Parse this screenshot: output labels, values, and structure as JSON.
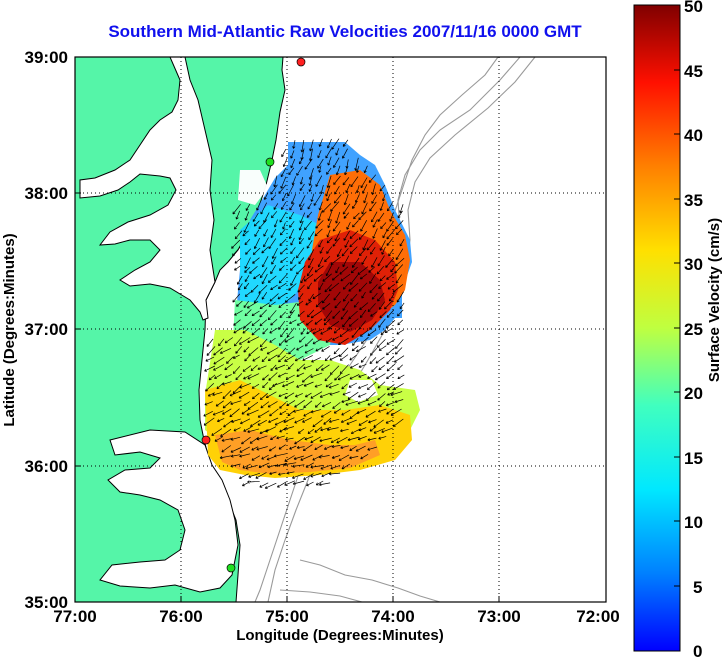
{
  "title": "Southern Mid-Atlantic Raw Velocities 2007/11/16 0000 GMT",
  "x_axis": {
    "label": "Longitude (Degrees:Minutes)",
    "ticks": [
      "77:00",
      "76:00",
      "75:00",
      "74:00",
      "73:00",
      "72:00"
    ]
  },
  "y_axis": {
    "label": "Latitude (Degrees:Minutes)",
    "ticks": [
      "39:00",
      "38:00",
      "37:00",
      "36:00",
      "35:00"
    ]
  },
  "colorbar": {
    "label": "Surface Velocity (cm/s)",
    "ticks": [
      "50",
      "45",
      "40",
      "35",
      "30",
      "25",
      "20",
      "15",
      "10",
      "5",
      "0"
    ]
  },
  "colors": {
    "land": "#55f5a8",
    "water": "#ffffff",
    "bathymetry": "#9a9a9a",
    "coastline": "#000000",
    "title": "#1010ee",
    "station_red": "#ff2020",
    "station_green": "#20e020"
  }
}
